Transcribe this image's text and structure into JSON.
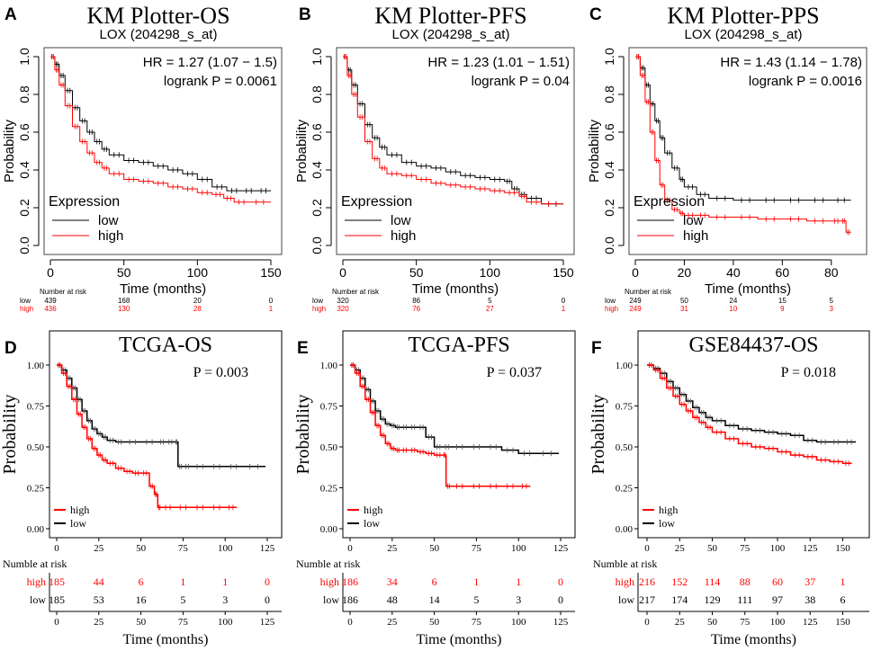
{
  "colors": {
    "high": "#ff0000",
    "low": "#000000",
    "gray_low": "#333333"
  },
  "chart_data": [
    {
      "type": "line",
      "panel": "A",
      "style": "km",
      "title": "KM Plotter-OS",
      "subtitle": "LOX (204298_s_at)",
      "hr_text": "HR = 1.27 (1.07 − 1.5)",
      "p_text": "logrank P = 0.0061",
      "xlabel": "Time (months)",
      "ylabel": "Probability",
      "xlim": [
        0,
        150
      ],
      "ylim": [
        0,
        1
      ],
      "xticks": [
        "0",
        "50",
        "100",
        "150"
      ],
      "yticks": [
        "0.0",
        "0.2",
        "0.4",
        "0.6",
        "0.8",
        "1.0"
      ],
      "legend_title": "Expression",
      "series": [
        {
          "name": "low",
          "x": [
            0,
            3,
            6,
            10,
            15,
            20,
            25,
            30,
            35,
            40,
            50,
            60,
            70,
            80,
            90,
            100,
            110,
            120,
            130,
            140,
            150
          ],
          "y": [
            1.0,
            0.96,
            0.9,
            0.82,
            0.73,
            0.66,
            0.6,
            0.55,
            0.51,
            0.48,
            0.45,
            0.44,
            0.42,
            0.4,
            0.38,
            0.35,
            0.31,
            0.29,
            0.29,
            0.29,
            0.29
          ]
        },
        {
          "name": "high",
          "x": [
            0,
            3,
            6,
            10,
            15,
            20,
            25,
            30,
            35,
            40,
            50,
            60,
            70,
            80,
            90,
            100,
            110,
            118,
            125,
            135,
            150
          ],
          "y": [
            1.0,
            0.93,
            0.85,
            0.74,
            0.63,
            0.55,
            0.49,
            0.44,
            0.41,
            0.38,
            0.35,
            0.34,
            0.33,
            0.31,
            0.3,
            0.28,
            0.27,
            0.25,
            0.23,
            0.23,
            0.23
          ]
        }
      ],
      "risk_header": "Number at risk",
      "risk_times": [
        "0",
        "50",
        "100",
        "150"
      ],
      "risk_rows": [
        {
          "label": "low",
          "values": [
            "439",
            "168",
            "20",
            "0"
          ]
        },
        {
          "label": "high",
          "values": [
            "436",
            "130",
            "28",
            "1"
          ]
        }
      ]
    },
    {
      "type": "line",
      "panel": "B",
      "style": "km",
      "title": "KM Plotter-PFS",
      "subtitle": "LOX (204298_s_at)",
      "hr_text": "HR = 1.23 (1.01 − 1.51)",
      "p_text": "logrank P = 0.04",
      "xlabel": "Time (months)",
      "ylabel": "Probability",
      "xlim": [
        0,
        150
      ],
      "ylim": [
        0,
        1
      ],
      "xticks": [
        "0",
        "50",
        "100",
        "150"
      ],
      "yticks": [
        "0.0",
        "0.2",
        "0.4",
        "0.6",
        "0.8",
        "1.0"
      ],
      "legend_title": "Expression",
      "series": [
        {
          "name": "low",
          "x": [
            0,
            3,
            6,
            10,
            15,
            20,
            25,
            30,
            40,
            50,
            60,
            70,
            80,
            90,
            100,
            110,
            115,
            120,
            125,
            135,
            150
          ],
          "y": [
            1.0,
            0.93,
            0.85,
            0.75,
            0.64,
            0.57,
            0.52,
            0.48,
            0.44,
            0.42,
            0.41,
            0.39,
            0.37,
            0.36,
            0.35,
            0.34,
            0.3,
            0.27,
            0.25,
            0.22,
            0.22
          ]
        },
        {
          "name": "high",
          "x": [
            0,
            3,
            6,
            10,
            15,
            20,
            25,
            30,
            40,
            50,
            60,
            70,
            80,
            90,
            100,
            110,
            120,
            125,
            135,
            150
          ],
          "y": [
            1.0,
            0.9,
            0.8,
            0.68,
            0.55,
            0.46,
            0.41,
            0.38,
            0.37,
            0.35,
            0.33,
            0.32,
            0.31,
            0.3,
            0.29,
            0.28,
            0.26,
            0.23,
            0.22,
            0.22
          ]
        }
      ],
      "risk_header": "Number at risk",
      "risk_times": [
        "0",
        "50",
        "100",
        "150"
      ],
      "risk_rows": [
        {
          "label": "low",
          "values": [
            "320",
            "86",
            "5",
            "0"
          ]
        },
        {
          "label": "high",
          "values": [
            "320",
            "76",
            "27",
            "1"
          ]
        }
      ]
    },
    {
      "type": "line",
      "panel": "C",
      "style": "km",
      "title": "KM Plotter-PPS",
      "subtitle": "LOX (204298_s_at)",
      "hr_text": "HR = 1.43 (1.14 − 1.78)",
      "p_text": "logrank P = 0.0016",
      "xlabel": "Time (months)",
      "ylabel": "Probability",
      "xlim": [
        0,
        90
      ],
      "ylim": [
        0,
        1
      ],
      "xticks": [
        "0",
        "20",
        "40",
        "60",
        "80"
      ],
      "yticks": [
        "0.0",
        "0.2",
        "0.4",
        "0.6",
        "0.8",
        "1.0"
      ],
      "legend_title": "Expression",
      "series": [
        {
          "name": "low",
          "x": [
            0,
            2,
            4,
            6,
            8,
            10,
            12,
            15,
            18,
            20,
            25,
            30,
            40,
            50,
            60,
            70,
            80,
            88
          ],
          "y": [
            1.0,
            0.94,
            0.85,
            0.75,
            0.66,
            0.57,
            0.49,
            0.41,
            0.35,
            0.31,
            0.27,
            0.25,
            0.24,
            0.24,
            0.24,
            0.24,
            0.24,
            0.24
          ]
        },
        {
          "name": "high",
          "x": [
            0,
            2,
            4,
            6,
            8,
            10,
            12,
            15,
            18,
            20,
            25,
            30,
            40,
            50,
            60,
            70,
            80,
            84,
            86,
            88
          ],
          "y": [
            1.0,
            0.9,
            0.76,
            0.6,
            0.45,
            0.32,
            0.24,
            0.19,
            0.17,
            0.16,
            0.16,
            0.15,
            0.15,
            0.14,
            0.14,
            0.13,
            0.13,
            0.13,
            0.07,
            0.07
          ]
        }
      ],
      "risk_header": "Number at risk",
      "risk_times": [
        "0",
        "20",
        "40",
        "60",
        "80"
      ],
      "risk_rows": [
        {
          "label": "low",
          "values": [
            "249",
            "50",
            "24",
            "15",
            "5"
          ]
        },
        {
          "label": "high",
          "values": [
            "249",
            "31",
            "10",
            "9",
            "3"
          ]
        }
      ]
    },
    {
      "type": "line",
      "panel": "D",
      "style": "tcga",
      "title": "TCGA-OS",
      "p_text": "P = 0.003",
      "xlabel": "Time (months)",
      "ylabel": "Probability",
      "xlim": [
        0,
        125
      ],
      "ylim": [
        0,
        1
      ],
      "xticks": [
        "0",
        "25",
        "50",
        "75",
        "100",
        "125"
      ],
      "yticks": [
        "0.00",
        "0.25",
        "0.50",
        "0.75",
        "1.00"
      ],
      "series": [
        {
          "name": "high",
          "x": [
            0,
            3,
            6,
            9,
            12,
            15,
            18,
            21,
            24,
            27,
            30,
            35,
            40,
            45,
            50,
            55,
            58,
            60,
            62,
            70,
            80,
            90,
            100,
            107
          ],
          "y": [
            1.0,
            0.95,
            0.87,
            0.79,
            0.7,
            0.62,
            0.55,
            0.49,
            0.45,
            0.42,
            0.4,
            0.37,
            0.35,
            0.34,
            0.34,
            0.26,
            0.21,
            0.13,
            0.13,
            0.13,
            0.13,
            0.13,
            0.13,
            0.13
          ]
        },
        {
          "name": "low",
          "x": [
            0,
            3,
            6,
            9,
            12,
            15,
            18,
            21,
            24,
            27,
            30,
            35,
            40,
            50,
            60,
            65,
            70,
            72,
            75,
            80,
            90,
            100,
            110,
            124
          ],
          "y": [
            1.0,
            0.97,
            0.92,
            0.86,
            0.79,
            0.72,
            0.66,
            0.61,
            0.58,
            0.56,
            0.54,
            0.53,
            0.53,
            0.53,
            0.53,
            0.53,
            0.53,
            0.38,
            0.38,
            0.38,
            0.38,
            0.38,
            0.38,
            0.38
          ]
        }
      ],
      "legend": [
        "high",
        "low"
      ],
      "risk_header": "Numble at risk",
      "risk_times": [
        "0",
        "25",
        "50",
        "75",
        "100",
        "125"
      ],
      "risk_rows": [
        {
          "label": "high",
          "values": [
            "185",
            "44",
            "6",
            "1",
            "1",
            "0"
          ]
        },
        {
          "label": "low",
          "values": [
            "185",
            "53",
            "16",
            "5",
            "3",
            "0"
          ]
        }
      ]
    },
    {
      "type": "line",
      "panel": "E",
      "style": "tcga",
      "title": "TCGA-PFS",
      "p_text": "P = 0.037",
      "xlabel": "Time (months)",
      "ylabel": "Probability",
      "xlim": [
        0,
        125
      ],
      "ylim": [
        0,
        1
      ],
      "xticks": [
        "0",
        "25",
        "50",
        "75",
        "100",
        "125"
      ],
      "yticks": [
        "0.00",
        "0.25",
        "0.50",
        "0.75",
        "1.00"
      ],
      "series": [
        {
          "name": "high",
          "x": [
            0,
            3,
            6,
            9,
            12,
            15,
            18,
            21,
            24,
            27,
            30,
            35,
            40,
            45,
            50,
            55,
            57,
            60,
            70,
            80,
            90,
            100,
            107
          ],
          "y": [
            1.0,
            0.95,
            0.87,
            0.79,
            0.71,
            0.63,
            0.57,
            0.52,
            0.49,
            0.48,
            0.48,
            0.48,
            0.47,
            0.46,
            0.45,
            0.45,
            0.26,
            0.26,
            0.26,
            0.26,
            0.26,
            0.26,
            0.26
          ]
        },
        {
          "name": "low",
          "x": [
            0,
            3,
            6,
            9,
            12,
            15,
            18,
            21,
            24,
            27,
            30,
            35,
            40,
            45,
            50,
            55,
            60,
            70,
            80,
            90,
            100,
            110,
            124
          ],
          "y": [
            1.0,
            0.97,
            0.92,
            0.85,
            0.78,
            0.72,
            0.67,
            0.64,
            0.63,
            0.62,
            0.62,
            0.62,
            0.62,
            0.56,
            0.5,
            0.5,
            0.5,
            0.5,
            0.5,
            0.48,
            0.46,
            0.46,
            0.46
          ]
        }
      ],
      "legend": [
        "high",
        "low"
      ],
      "risk_header": "Numble at risk",
      "risk_times": [
        "0",
        "25",
        "50",
        "75",
        "100",
        "125"
      ],
      "risk_rows": [
        {
          "label": "high",
          "values": [
            "186",
            "34",
            "6",
            "1",
            "1",
            "0"
          ]
        },
        {
          "label": "low",
          "values": [
            "186",
            "48",
            "14",
            "5",
            "3",
            "0"
          ]
        }
      ]
    },
    {
      "type": "line",
      "panel": "F",
      "style": "tcga",
      "title": "GSE84437-OS",
      "p_text": "P = 0.018",
      "xlabel": "Time (months)",
      "ylabel": "Probability",
      "xlim": [
        0,
        160
      ],
      "ylim": [
        0,
        1
      ],
      "xticks": [
        "0",
        "25",
        "50",
        "75",
        "100",
        "125",
        "150"
      ],
      "yticks": [
        "0.00",
        "0.25",
        "0.50",
        "0.75",
        "1.00"
      ],
      "series": [
        {
          "name": "high",
          "x": [
            0,
            5,
            10,
            15,
            20,
            25,
            30,
            35,
            40,
            45,
            50,
            60,
            70,
            80,
            90,
            100,
            110,
            120,
            130,
            140,
            150,
            157
          ],
          "y": [
            1.0,
            0.97,
            0.92,
            0.86,
            0.81,
            0.76,
            0.72,
            0.68,
            0.65,
            0.62,
            0.59,
            0.55,
            0.52,
            0.5,
            0.49,
            0.47,
            0.45,
            0.44,
            0.42,
            0.41,
            0.4,
            0.4
          ]
        },
        {
          "name": "low",
          "x": [
            0,
            5,
            10,
            15,
            20,
            25,
            30,
            35,
            40,
            45,
            50,
            60,
            70,
            80,
            90,
            100,
            110,
            120,
            130,
            140,
            150,
            160
          ],
          "y": [
            1.0,
            0.98,
            0.95,
            0.9,
            0.86,
            0.82,
            0.78,
            0.74,
            0.71,
            0.68,
            0.66,
            0.63,
            0.61,
            0.6,
            0.59,
            0.58,
            0.57,
            0.54,
            0.53,
            0.53,
            0.53,
            0.53
          ]
        }
      ],
      "legend": [
        "high",
        "low"
      ],
      "risk_header": "Numble at risk",
      "risk_times": [
        "0",
        "25",
        "50",
        "75",
        "100",
        "125",
        "150"
      ],
      "risk_rows": [
        {
          "label": "high",
          "values": [
            "216",
            "152",
            "114",
            "88",
            "60",
            "37",
            "1"
          ]
        },
        {
          "label": "low",
          "values": [
            "217",
            "174",
            "129",
            "111",
            "97",
            "38",
            "6"
          ]
        }
      ]
    }
  ]
}
